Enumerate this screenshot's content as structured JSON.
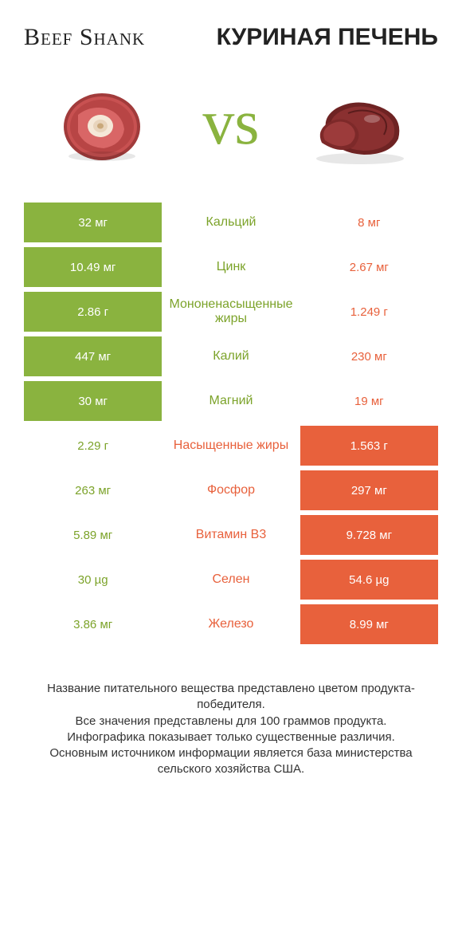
{
  "header": {
    "left_title": "Beef Shank",
    "right_title": "КУРИНАЯ ПЕЧЕНЬ",
    "vs": "vs"
  },
  "colors": {
    "green": "#8ab33f",
    "orange": "#e8613c",
    "text_green": "#7ca32a",
    "text_orange": "#e8613c",
    "bg": "#ffffff"
  },
  "table": {
    "rows": [
      {
        "left": "32 мг",
        "label": "Кальций",
        "right": "8 мг",
        "winner": "left"
      },
      {
        "left": "10.49 мг",
        "label": "Цинк",
        "right": "2.67 мг",
        "winner": "left"
      },
      {
        "left": "2.86 г",
        "label": "Мононенасыщенные жиры",
        "right": "1.249 г",
        "winner": "left"
      },
      {
        "left": "447 мг",
        "label": "Калий",
        "right": "230 мг",
        "winner": "left"
      },
      {
        "left": "30 мг",
        "label": "Магний",
        "right": "19 мг",
        "winner": "left"
      },
      {
        "left": "2.29 г",
        "label": "Насыщенные жиры",
        "right": "1.563 г",
        "winner": "right"
      },
      {
        "left": "263 мг",
        "label": "Фосфор",
        "right": "297 мг",
        "winner": "right"
      },
      {
        "left": "5.89 мг",
        "label": "Витамин B3",
        "right": "9.728 мг",
        "winner": "right"
      },
      {
        "left": "30 µg",
        "label": "Селен",
        "right": "54.6 µg",
        "winner": "right"
      },
      {
        "left": "3.86 мг",
        "label": "Железо",
        "right": "8.99 мг",
        "winner": "right"
      }
    ]
  },
  "footer": {
    "line1": "Название питательного вещества представлено цветом продукта-победителя.",
    "line2": "Все значения представлены для 100 граммов продукта.",
    "line3": "Инфографика показывает только существенные различия.",
    "line4": "Основным источником информации является база министерства сельского хозяйства США."
  }
}
